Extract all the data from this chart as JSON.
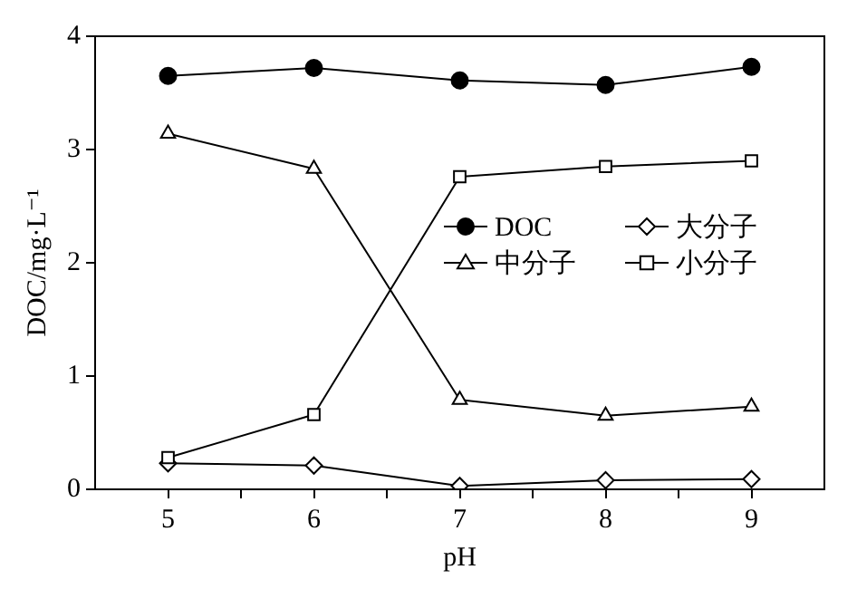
{
  "chart_data": {
    "type": "line",
    "xlabel": "pH",
    "ylabel": "DOC/mg·L⁻¹",
    "x": [
      5,
      6,
      7,
      8,
      9
    ],
    "xlim": [
      4.5,
      9.5
    ],
    "xticks": [
      5,
      {
        "value": 5.5,
        "label": null
      },
      6,
      {
        "value": 6.5,
        "label": null
      },
      7,
      {
        "value": 7.5,
        "label": null
      },
      8,
      {
        "value": 8.5,
        "label": null
      },
      9
    ],
    "ylim": [
      0,
      4
    ],
    "yticks": [
      0,
      1,
      2,
      3,
      4
    ],
    "grid": false,
    "legend": "right",
    "line_style": "solid",
    "series": [
      {
        "name": "DOC",
        "color": "#000000",
        "marker": "circle",
        "values": [
          3.65,
          3.72,
          3.61,
          3.57,
          3.73
        ]
      },
      {
        "name": "大分子",
        "color": "#000000",
        "marker": "diamond",
        "values": [
          0.23,
          0.21,
          0.03,
          0.08,
          0.09
        ]
      },
      {
        "name": "中分子",
        "color": "#000000",
        "marker": "triangle",
        "values": [
          3.14,
          2.83,
          0.79,
          0.65,
          0.73
        ]
      },
      {
        "name": "小分子",
        "color": "#000000",
        "marker": "square",
        "values": [
          0.28,
          0.66,
          2.76,
          2.85,
          2.9
        ]
      }
    ]
  }
}
